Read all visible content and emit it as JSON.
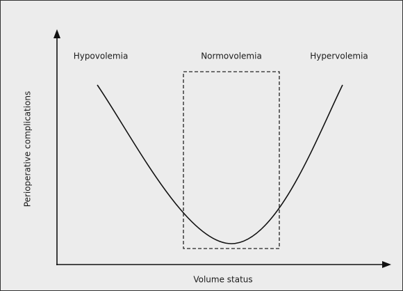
{
  "regions": {
    "left": "Hypovolemia",
    "middle": "Normovolemia",
    "right": "Hypervolemia"
  },
  "axes": {
    "y_label": "Perioperative complications",
    "x_label": "Volume status"
  }
}
